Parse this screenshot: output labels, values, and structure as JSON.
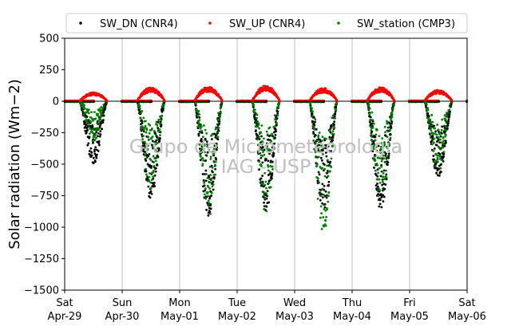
{
  "chart_data": {
    "type": "scatter",
    "title": "",
    "xlabel": "",
    "ylabel": "Solar radiation (Wm−2)",
    "ylim": [
      -1500,
      500
    ],
    "yticks": [
      500,
      250,
      0,
      -250,
      -500,
      -750,
      -1000,
      -1250,
      -1500
    ],
    "ytick_labels": [
      "500",
      "250",
      "0",
      "−250",
      "−500",
      "−750",
      "−1000",
      "−1250",
      "−1500"
    ],
    "xlim": [
      "2017-04-29",
      "2017-05-06"
    ],
    "xticks": [
      {
        "day": "Sat",
        "date": "Apr-29"
      },
      {
        "day": "Sun",
        "date": "Apr-30"
      },
      {
        "day": "Mon",
        "date": "May-01"
      },
      {
        "day": "Tue",
        "date": "May-02"
      },
      {
        "day": "Wed",
        "date": "May-03"
      },
      {
        "day": "Thu",
        "date": "May-04"
      },
      {
        "day": "Fri",
        "date": "May-05"
      },
      {
        "day": "Sat",
        "date": "May-06"
      }
    ],
    "grid": "vertical",
    "legend_position": "top",
    "watermark": [
      "Grupo de Micrometeorologia",
      "IAG - USP"
    ],
    "series": [
      {
        "name": "SW_DN (CNR4)",
        "color": "#000000",
        "marker": "dot",
        "daily_peak_values": [
          -500,
          -790,
          -910,
          -870,
          -880,
          -860,
          -615
        ]
      },
      {
        "name": "SW_UP (CNR4)",
        "color": "#ff0000",
        "marker": "dot",
        "daily_peak_values": [
          70,
          110,
          115,
          125,
          105,
          110,
          90
        ]
      },
      {
        "name": "SW_station (CMP3)",
        "color": "#008000",
        "marker": "dot",
        "daily_peak_values": [
          -320,
          -720,
          -930,
          -890,
          -1120,
          -850,
          -560
        ]
      }
    ]
  }
}
